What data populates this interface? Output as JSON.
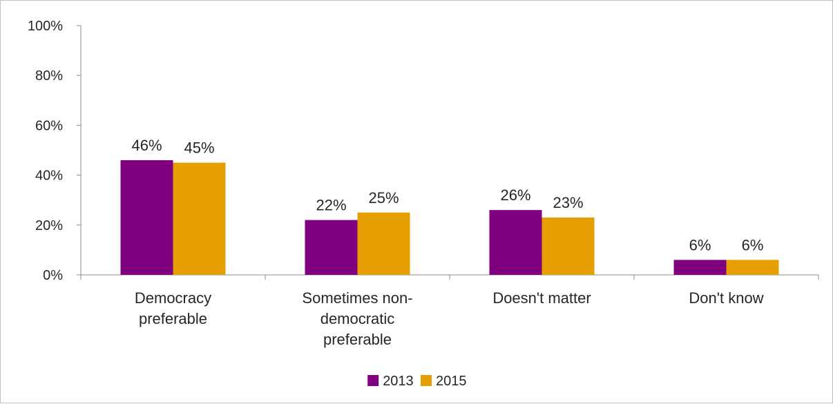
{
  "chart_data": {
    "type": "bar",
    "categories": [
      [
        "Democracy",
        "preferable"
      ],
      [
        "Sometimes non-",
        "democratic",
        "preferable"
      ],
      [
        "Doesn't matter"
      ],
      [
        "Don't know"
      ]
    ],
    "series": [
      {
        "name": "2013",
        "values": [
          46,
          22,
          26,
          6
        ],
        "labels": [
          "46%",
          "22%",
          "26%",
          "6%"
        ],
        "color": "#800080"
      },
      {
        "name": "2015",
        "values": [
          45,
          25,
          23,
          6
        ],
        "labels": [
          "45%",
          "25%",
          "23%",
          "6%"
        ],
        "color": "#E69F00"
      }
    ],
    "ylim": [
      0,
      100
    ],
    "yticks": [
      0,
      20,
      40,
      60,
      80,
      100
    ],
    "ytick_labels": [
      "0%",
      "20%",
      "40%",
      "60%",
      "80%",
      "100%"
    ],
    "grid": false,
    "legend_position": "bottom-center",
    "title": "",
    "xlabel": "",
    "ylabel": ""
  }
}
